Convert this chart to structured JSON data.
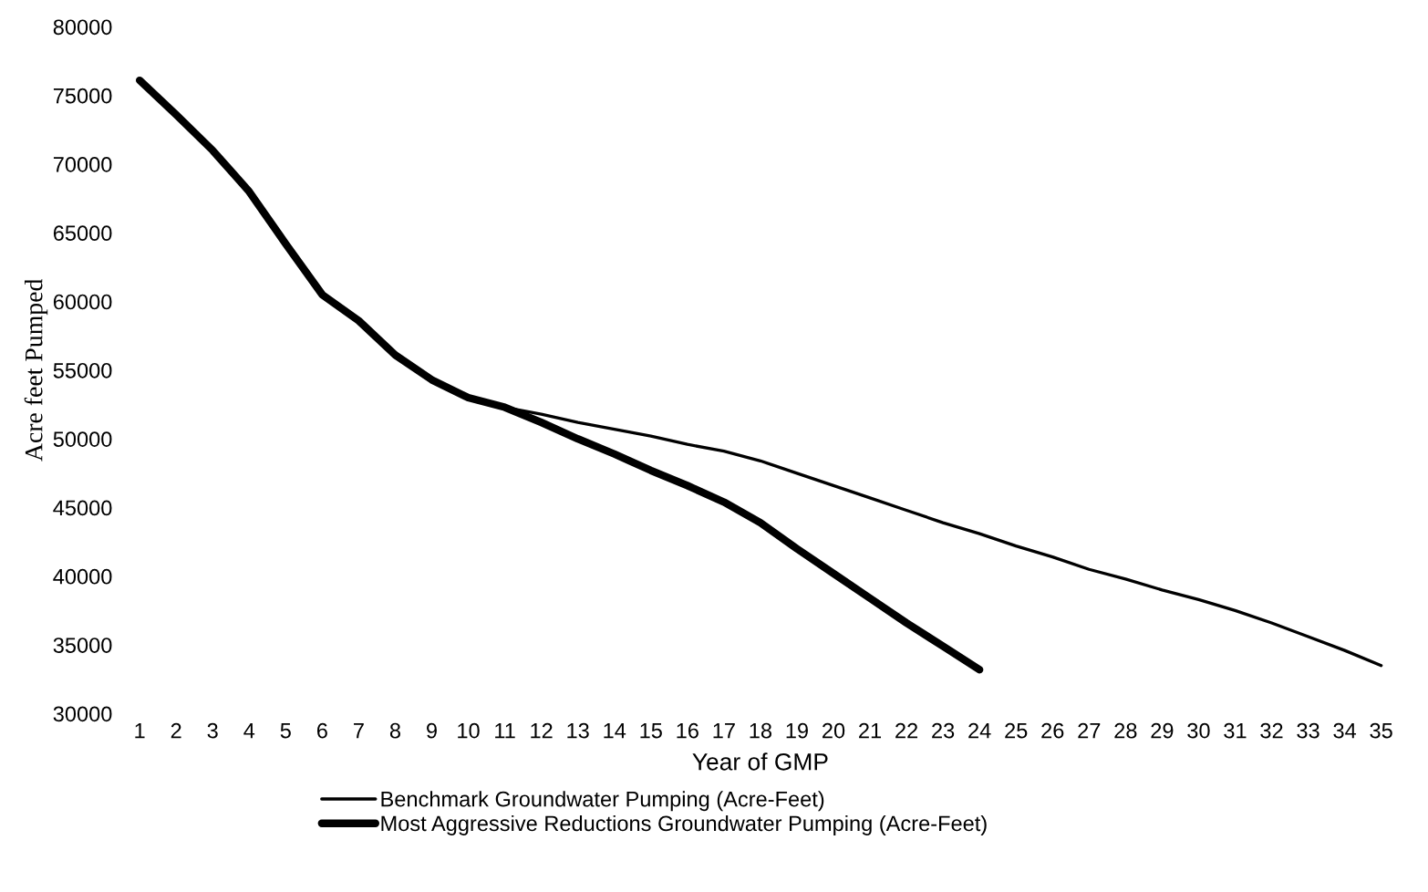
{
  "chart_data": {
    "type": "line",
    "xlabel": "Year of GMP",
    "ylabel": "Acre feet Pumped",
    "categories": [
      "1",
      "2",
      "3",
      "4",
      "5",
      "6",
      "7",
      "8",
      "9",
      "10",
      "11",
      "12",
      "13",
      "14",
      "15",
      "16",
      "17",
      "18",
      "19",
      "20",
      "21",
      "22",
      "23",
      "24",
      "25",
      "26",
      "27",
      "28",
      "29",
      "30",
      "31",
      "32",
      "33",
      "34",
      "35"
    ],
    "ylim": [
      30000,
      80000
    ],
    "yticks": [
      30000,
      35000,
      40000,
      45000,
      50000,
      55000,
      60000,
      65000,
      70000,
      75000,
      80000
    ],
    "grid": false,
    "legend": "bottom",
    "marker": "none",
    "line_style": "solid",
    "series": [
      {
        "name": "Benchmark Groundwater Pumping (Acre-Feet)",
        "color": "#000000",
        "values": [
          76100,
          73600,
          71000,
          68000,
          64200,
          60500,
          58600,
          56100,
          54300,
          53000,
          52300,
          51800,
          51200,
          50700,
          50200,
          49600,
          49100,
          48400,
          47500,
          46600,
          45700,
          44800,
          43900,
          43100,
          42200,
          41400,
          40500,
          39800,
          39000,
          38300,
          37500,
          36600,
          35600,
          34600,
          33500
        ]
      },
      {
        "name": "Most Aggressive Reductions Groundwater Pumping (Acre-Feet)",
        "color": "#000000",
        "values": [
          76100,
          73600,
          71000,
          68000,
          64200,
          60500,
          58600,
          56100,
          54300,
          53000,
          52300,
          51200,
          50000,
          48900,
          47700,
          46600,
          45400,
          43900,
          42000,
          40200,
          38400,
          36600,
          34900,
          33200,
          null,
          null,
          null,
          null,
          null,
          null,
          null,
          null,
          null,
          null,
          null
        ]
      }
    ]
  }
}
